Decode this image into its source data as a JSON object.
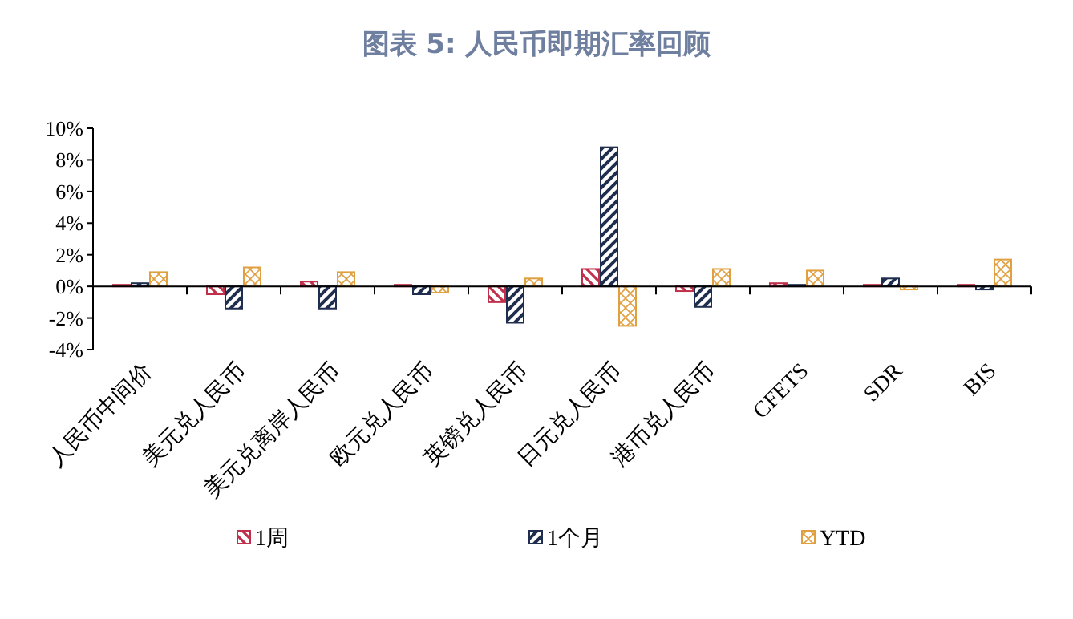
{
  "chart_data": {
    "type": "bar",
    "title": "图表 5: 人民币即期汇率回顾",
    "categories": [
      "人民币中间价",
      "美元兑人民币",
      "美元兑离岸人民币",
      "欧元兑人民币",
      "英镑兑人民币",
      "日元兑人民币",
      "港币兑人民币",
      "CFETS",
      "SDR",
      "BIS"
    ],
    "series": [
      {
        "name": "1周",
        "color": "#c0304a",
        "values": [
          0.1,
          -0.5,
          0.3,
          0.1,
          -1.0,
          1.1,
          -0.3,
          0.2,
          0.1,
          0.1
        ]
      },
      {
        "name": "1个月",
        "color": "#1f2d4e",
        "values": [
          0.2,
          -1.4,
          -1.4,
          -0.5,
          -2.3,
          8.8,
          -1.3,
          0.1,
          0.5,
          -0.2
        ]
      },
      {
        "name": "YTD",
        "color": "#e0a040",
        "values": [
          0.9,
          1.2,
          0.9,
          -0.4,
          0.5,
          -2.5,
          1.1,
          1.0,
          -0.2,
          1.7
        ]
      }
    ],
    "ylim": [
      -4,
      10
    ],
    "yticks": [
      {
        "value": -4,
        "label": "-4%"
      },
      {
        "value": -2,
        "label": "-2%"
      },
      {
        "value": 0,
        "label": "0%"
      },
      {
        "value": 2,
        "label": "2%"
      },
      {
        "value": 4,
        "label": "4%"
      },
      {
        "value": 6,
        "label": "6%"
      },
      {
        "value": 8,
        "label": "8%"
      },
      {
        "value": 10,
        "label": "10%"
      }
    ],
    "legend": "bottom"
  }
}
